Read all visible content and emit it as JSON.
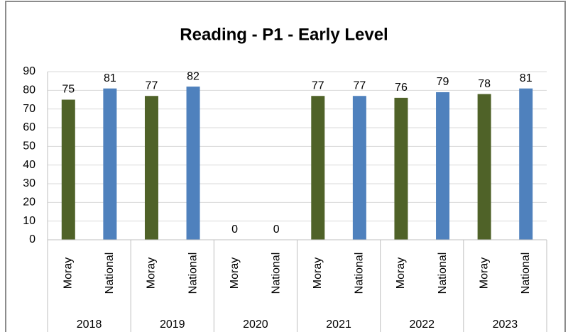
{
  "chart_data": {
    "type": "bar",
    "title": "Reading - P1 - Early Level",
    "categories": [
      "2018",
      "2019",
      "2020",
      "2021",
      "2022",
      "2023"
    ],
    "series": [
      {
        "name": "Moray",
        "color": "#4f6228",
        "values": [
          75,
          77,
          0,
          77,
          76,
          78
        ]
      },
      {
        "name": "National",
        "color": "#4f81bd",
        "values": [
          81,
          82,
          0,
          77,
          79,
          81
        ]
      }
    ],
    "ylim": [
      0,
      90
    ],
    "yticks": [
      0,
      10,
      20,
      30,
      40,
      50,
      60,
      70,
      80,
      90
    ],
    "grid": true
  }
}
